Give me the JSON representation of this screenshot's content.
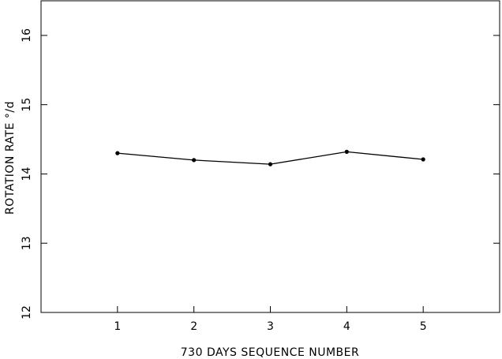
{
  "chart_data": {
    "type": "line",
    "title": "",
    "xlabel": "730 DAYS SEQUENCE NUMBER",
    "ylabel": "ROTATION RATE °/d",
    "xlim": [
      0,
      6
    ],
    "ylim": [
      12,
      16.5
    ],
    "xticks": [
      1,
      2,
      3,
      4,
      5
    ],
    "yticks": [
      12,
      13,
      14,
      15,
      16
    ],
    "grid": false,
    "legend": "none",
    "series": [
      {
        "x": [
          1,
          2,
          3,
          4,
          5
        ],
        "values": [
          14.3,
          14.2,
          14.14,
          14.32,
          14.21
        ]
      }
    ],
    "colors": {
      "line": "#000000",
      "marker": "#000000",
      "frame": "#000000"
    }
  }
}
